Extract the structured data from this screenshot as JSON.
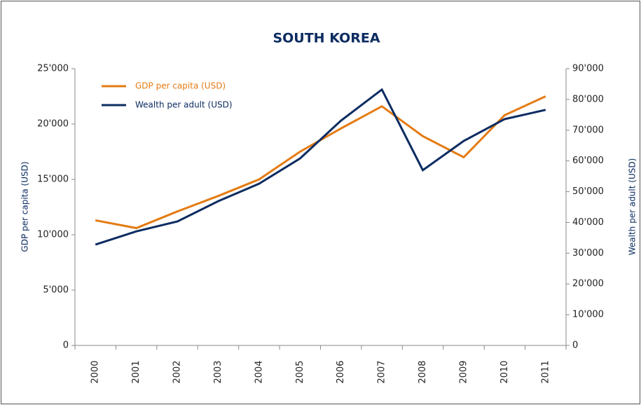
{
  "chart_data": {
    "type": "line",
    "title": "SOUTH KOREA",
    "categories": [
      "2000",
      "2001",
      "2002",
      "2003",
      "2004",
      "2005",
      "2006",
      "2007",
      "2008",
      "2009",
      "2010",
      "2011"
    ],
    "series": [
      {
        "name": "GDP per capita (USD)",
        "color": "#e47b13",
        "values": [
          11300,
          10600,
          12100,
          13500,
          15000,
          17500,
          19600,
          21600,
          18900,
          17000,
          20800,
          22500
        ]
      },
      {
        "name": "Wealth per adult (USD)",
        "color": "#0c2c61",
        "axis": "y2",
        "values": [
          32800,
          37100,
          40300,
          46900,
          52600,
          60800,
          73100,
          83200,
          57000,
          66500,
          73600,
          76600
        ]
      }
    ],
    "ylabel": "GDP per capita (USD)",
    "y2label": "Wealth per adult (USD)",
    "ylim": [
      0,
      25000
    ],
    "yticks": [
      0,
      {
        "value": 5000,
        "label": "5'000"
      },
      {
        "value": 10000,
        "label": "10'000"
      },
      {
        "value": 15000,
        "label": "15'000"
      },
      {
        "value": 20000,
        "label": "20'000"
      },
      {
        "value": 25000,
        "label": "25'000"
      }
    ],
    "y2lim": [
      0,
      90000
    ],
    "y2ticks": [
      0,
      {
        "value": 10000,
        "label": "10'000"
      },
      {
        "value": 20000,
        "label": "20'000"
      },
      {
        "value": 30000,
        "label": "30'000"
      },
      {
        "value": 40000,
        "label": "40'000"
      },
      {
        "value": 50000,
        "label": "50'000"
      },
      {
        "value": 60000,
        "label": "60'000"
      },
      {
        "value": 70000,
        "label": "70'000"
      },
      {
        "value": 80000,
        "label": "80'000"
      },
      {
        "value": 90000,
        "label": "90'000"
      }
    ],
    "legend": "upper left"
  }
}
